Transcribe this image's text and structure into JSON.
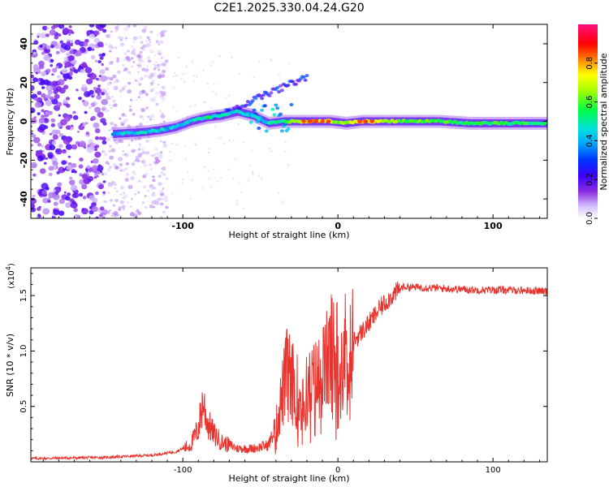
{
  "title": "C2E1.2025.330.04.24.G20",
  "chart_data": [
    {
      "type": "heatmap",
      "name": "spectrogram",
      "xlabel": "Height of straight line (km)",
      "ylabel": "Frequency (Hz)",
      "xlim": [
        -198,
        135
      ],
      "ylim": [
        -50,
        50
      ],
      "x_ticks": [
        -100,
        0,
        100
      ],
      "x_tick_labels": [
        "-100",
        "0",
        "100"
      ],
      "y_ticks": [
        -40,
        -20,
        0,
        20,
        40
      ],
      "y_tick_labels": [
        "-40",
        "-20",
        "0",
        "20",
        "40"
      ],
      "colorbar": {
        "label": "Normalized spectral amplitude",
        "range": [
          0.0,
          1.0
        ],
        "ticks": [
          0.0,
          0.2,
          0.4,
          0.6,
          0.8
        ],
        "tick_labels": [
          "0.0",
          "0.2",
          "0.4",
          "0.6",
          "0.8"
        ]
      },
      "main_track": [
        {
          "x": -145,
          "f": -6.5,
          "a": 0.4
        },
        {
          "x": -135,
          "f": -6,
          "a": 0.45
        },
        {
          "x": -125,
          "f": -5.5,
          "a": 0.45
        },
        {
          "x": -115,
          "f": -4.5,
          "a": 0.45
        },
        {
          "x": -105,
          "f": -3,
          "a": 0.4
        },
        {
          "x": -95,
          "f": 0,
          "a": 0.45
        },
        {
          "x": -85,
          "f": 2,
          "a": 0.5
        },
        {
          "x": -75,
          "f": 3,
          "a": 0.5
        },
        {
          "x": -65,
          "f": 5,
          "a": 0.45
        },
        {
          "x": -55,
          "f": 3,
          "a": 0.45
        },
        {
          "x": -45,
          "f": -1,
          "a": 0.45
        },
        {
          "x": -35,
          "f": 0,
          "a": 0.5
        },
        {
          "x": -25,
          "f": 0,
          "a": 0.7
        },
        {
          "x": -15,
          "f": 0,
          "a": 0.8
        },
        {
          "x": -5,
          "f": 0,
          "a": 0.7
        },
        {
          "x": 5,
          "f": -1,
          "a": 0.6
        },
        {
          "x": 15,
          "f": 0,
          "a": 0.8
        },
        {
          "x": 25,
          "f": 0,
          "a": 0.7
        },
        {
          "x": 45,
          "f": 0,
          "a": 0.6
        },
        {
          "x": 65,
          "f": 0,
          "a": 0.6
        },
        {
          "x": 85,
          "f": -1,
          "a": 0.55
        },
        {
          "x": 105,
          "f": -1,
          "a": 0.55
        },
        {
          "x": 125,
          "f": -1,
          "a": 0.55
        },
        {
          "x": 135,
          "f": -1,
          "a": 0.55
        }
      ]
    },
    {
      "type": "line",
      "name": "snr",
      "xlabel": "Height of straight line (km)",
      "ylabel": "SNR (10 * v/v)",
      "y_multiplier": "(x10",
      "y_multiplier_exp": "4",
      "y_multiplier_close": ")",
      "xlim": [
        -198,
        135
      ],
      "ylim": [
        0,
        17500
      ],
      "x_ticks": [
        -100,
        0,
        100
      ],
      "x_tick_labels": [
        "-100",
        "0",
        "100"
      ],
      "y_ticks": [
        5000,
        10000,
        15000
      ],
      "y_tick_labels": [
        "0.5",
        "1.0",
        "1.5"
      ],
      "color": "#e8332e",
      "envelope": [
        {
          "x": -198,
          "y": 300
        },
        {
          "x": -150,
          "y": 400
        },
        {
          "x": -120,
          "y": 600
        },
        {
          "x": -105,
          "y": 900
        },
        {
          "x": -95,
          "y": 1500
        },
        {
          "x": -90,
          "y": 3000
        },
        {
          "x": -87,
          "y": 5500
        },
        {
          "x": -84,
          "y": 3500
        },
        {
          "x": -80,
          "y": 2500
        },
        {
          "x": -75,
          "y": 1800
        },
        {
          "x": -65,
          "y": 1200
        },
        {
          "x": -55,
          "y": 1200
        },
        {
          "x": -45,
          "y": 1500
        },
        {
          "x": -40,
          "y": 3000
        },
        {
          "x": -36,
          "y": 6000
        },
        {
          "x": -32,
          "y": 8500
        },
        {
          "x": -28,
          "y": 6500
        },
        {
          "x": -22,
          "y": 6000
        },
        {
          "x": -16,
          "y": 7000
        },
        {
          "x": -10,
          "y": 8000
        },
        {
          "x": -4,
          "y": 10000
        },
        {
          "x": 2,
          "y": 9800
        },
        {
          "x": 8,
          "y": 10500
        },
        {
          "x": 14,
          "y": 11500
        },
        {
          "x": 20,
          "y": 12500
        },
        {
          "x": 28,
          "y": 14000
        },
        {
          "x": 35,
          "y": 15000
        },
        {
          "x": 42,
          "y": 15800
        },
        {
          "x": 60,
          "y": 15700
        },
        {
          "x": 75,
          "y": 15600
        },
        {
          "x": 90,
          "y": 15500
        },
        {
          "x": 110,
          "y": 15500
        },
        {
          "x": 135,
          "y": 15400
        }
      ]
    }
  ]
}
